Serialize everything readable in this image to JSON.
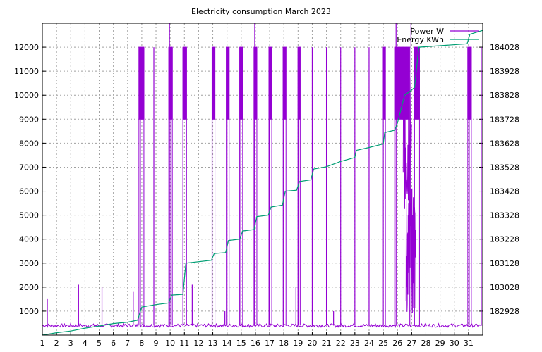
{
  "chart_data": {
    "type": "line",
    "title": "Electricity consumption March 2023",
    "xlabel": "",
    "ylabel": "",
    "x_ticks": [
      "1",
      "2",
      "3",
      "4",
      "5",
      "6",
      "7",
      "8",
      "9",
      "10",
      "11",
      "12",
      "13",
      "14",
      "15",
      "16",
      "17",
      "18",
      "19",
      "20",
      "21",
      "22",
      "23",
      "24",
      "25",
      "26",
      "27",
      "28",
      "29",
      "30",
      "31"
    ],
    "xlim": [
      1,
      32
    ],
    "ylim": [
      0,
      13000
    ],
    "y_ticks": [
      1000,
      2000,
      3000,
      4000,
      5000,
      6000,
      7000,
      8000,
      9000,
      10000,
      11000,
      12000
    ],
    "y2lim": [
      182828,
      184128
    ],
    "y2_ticks": [
      182928,
      183028,
      183128,
      183228,
      183328,
      183428,
      183528,
      183628,
      183728,
      183828,
      183928,
      184028
    ],
    "grid": true,
    "legend_position": "top-right",
    "series": [
      {
        "name": "Power W",
        "axis": "left",
        "color": "#9400d3",
        "baseline": 400,
        "spikes": [
          {
            "day": 1.35,
            "value": 1500
          },
          {
            "day": 3.55,
            "value": 2100
          },
          {
            "day": 5.2,
            "value": 2000
          },
          {
            "day": 7.4,
            "value": 1800
          },
          {
            "day": 7.9,
            "value": 12000
          },
          {
            "day": 8.85,
            "value": 12000
          },
          {
            "day": 9.95,
            "value": 13000
          },
          {
            "day": 10.05,
            "value": 12000
          },
          {
            "day": 10.9,
            "value": 12000
          },
          {
            "day": 11.55,
            "value": 2100
          },
          {
            "day": 12.95,
            "value": 12000
          },
          {
            "day": 13.85,
            "value": 1000
          },
          {
            "day": 14.0,
            "value": 12000
          },
          {
            "day": 14.9,
            "value": 12000
          },
          {
            "day": 15.95,
            "value": 13000
          },
          {
            "day": 17.0,
            "value": 12000
          },
          {
            "day": 18.0,
            "value": 12000
          },
          {
            "day": 18.85,
            "value": 2000
          },
          {
            "day": 19.0,
            "value": 12000
          },
          {
            "day": 20.0,
            "value": 12000
          },
          {
            "day": 21.0,
            "value": 12000
          },
          {
            "day": 21.5,
            "value": 1000
          },
          {
            "day": 22.0,
            "value": 12000
          },
          {
            "day": 23.0,
            "value": 12000
          },
          {
            "day": 24.0,
            "value": 12000
          },
          {
            "day": 25.0,
            "value": 12000
          },
          {
            "day": 25.9,
            "value": 13000
          },
          {
            "day": 26.95,
            "value": 13000
          },
          {
            "day": 31.05,
            "value": 12000
          },
          {
            "day": 31.9,
            "value": 12000
          }
        ],
        "blocks": [
          {
            "from": 7.8,
            "to": 8.15,
            "low": 9000,
            "high": 12000
          },
          {
            "from": 9.9,
            "to": 10.15,
            "low": 9000,
            "high": 12000
          },
          {
            "from": 10.9,
            "to": 11.15,
            "low": 9000,
            "high": 12000
          },
          {
            "from": 12.95,
            "to": 13.15,
            "low": 9000,
            "high": 12000
          },
          {
            "from": 13.95,
            "to": 14.15,
            "low": 9000,
            "high": 12000
          },
          {
            "from": 14.9,
            "to": 15.1,
            "low": 9000,
            "high": 12000
          },
          {
            "from": 15.9,
            "to": 16.1,
            "low": 9000,
            "high": 12000
          },
          {
            "from": 16.95,
            "to": 17.15,
            "low": 9000,
            "high": 12000
          },
          {
            "from": 17.95,
            "to": 18.15,
            "low": 9000,
            "high": 12000
          },
          {
            "from": 19.0,
            "to": 19.15,
            "low": 9000,
            "high": 12000
          },
          {
            "from": 24.95,
            "to": 25.15,
            "low": 9000,
            "high": 12000
          },
          {
            "from": 25.8,
            "to": 26.85,
            "low": 9000,
            "high": 12000
          },
          {
            "from": 27.2,
            "to": 27.55,
            "low": 9000,
            "high": 12000
          },
          {
            "from": 30.95,
            "to": 31.2,
            "low": 9000,
            "high": 12000
          }
        ],
        "noise": [
          {
            "from": 26.4,
            "to": 27.0,
            "low": 5000,
            "high": 11000
          },
          {
            "from": 26.6,
            "to": 27.3,
            "low": 600,
            "high": 6200
          }
        ]
      },
      {
        "name": "Energy KWh",
        "axis": "right",
        "color": "#009e73",
        "points": [
          [
            1.0,
            182828
          ],
          [
            2.0,
            182838
          ],
          [
            3.0,
            182845
          ],
          [
            4.0,
            182857
          ],
          [
            5.0,
            182866
          ],
          [
            6.0,
            182876
          ],
          [
            7.0,
            182882
          ],
          [
            7.7,
            182890
          ],
          [
            8.0,
            182945
          ],
          [
            9.0,
            182955
          ],
          [
            9.9,
            182962
          ],
          [
            10.1,
            182995
          ],
          [
            10.9,
            182998
          ],
          [
            11.1,
            183128
          ],
          [
            12.9,
            183140
          ],
          [
            13.1,
            183168
          ],
          [
            13.9,
            183172
          ],
          [
            14.1,
            183222
          ],
          [
            14.9,
            183228
          ],
          [
            15.1,
            183262
          ],
          [
            15.9,
            183268
          ],
          [
            16.1,
            183322
          ],
          [
            16.9,
            183328
          ],
          [
            17.1,
            183362
          ],
          [
            17.9,
            183370
          ],
          [
            18.1,
            183428
          ],
          [
            18.9,
            183432
          ],
          [
            19.1,
            183468
          ],
          [
            19.9,
            183475
          ],
          [
            20.1,
            183520
          ],
          [
            21.0,
            183530
          ],
          [
            22.0,
            183552
          ],
          [
            23.0,
            183568
          ],
          [
            23.1,
            183598
          ],
          [
            24.0,
            183610
          ],
          [
            25.0,
            183625
          ],
          [
            25.1,
            183672
          ],
          [
            25.8,
            183682
          ],
          [
            26.0,
            183712
          ],
          [
            26.5,
            183828
          ],
          [
            26.9,
            183845
          ],
          [
            27.2,
            183860
          ],
          [
            27.5,
            184028
          ],
          [
            30.9,
            184042
          ],
          [
            31.1,
            184082
          ],
          [
            32.0,
            184098
          ]
        ]
      }
    ]
  }
}
